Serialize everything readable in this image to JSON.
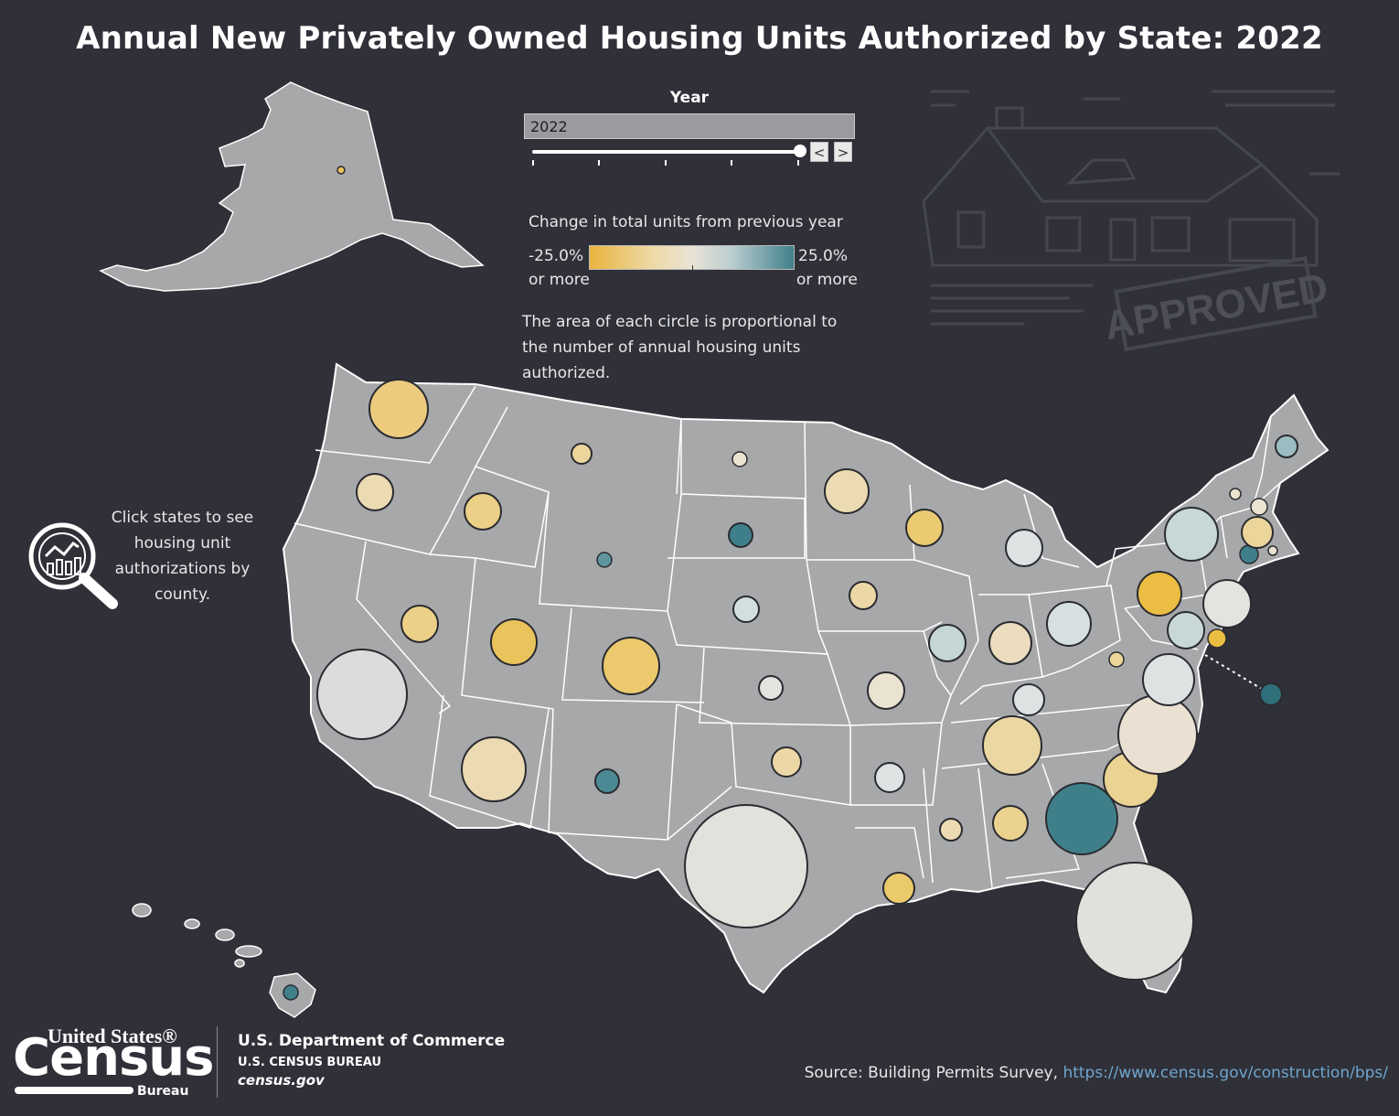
{
  "title": "Annual New Privately Owned Housing Units Authorized by State: 2022",
  "year_filter": {
    "label": "Year",
    "selected": "2022",
    "prev_label": "<",
    "next_label": ">"
  },
  "legend": {
    "title": "Change in total units from previous year",
    "low_label": "-25.0%",
    "low_sub": "or more",
    "high_label": "25.0%",
    "high_sub": "or more",
    "low_color": "#e9b33f",
    "mid_color": "#e9e3d6",
    "high_color": "#3f7f8a"
  },
  "size_note": "The area of each circle is proportional to the number of annual housing units authorized.",
  "click_hint": "Click states to see housing unit authorizations by county.",
  "decoration": {
    "stamp_text": "APPROVED"
  },
  "footer": {
    "logo_top": "United States®",
    "logo_main": "Census",
    "logo_bureau": "Bureau",
    "dept": "U.S. Department of Commerce",
    "bureau": "U.S. CENSUS BUREAU",
    "site": "census.gov",
    "source_label": "Source:",
    "source_text": "Building Permits Survey,",
    "source_url": "https://www.census.gov/construction/bps/"
  },
  "colors": {
    "background": "#2f3038",
    "land": "#a7a8aa",
    "state_border": "#ffffff"
  },
  "states": [
    {
      "name": "Washington",
      "size": 32,
      "color": "#eccb7f"
    },
    {
      "name": "Oregon",
      "size": 20,
      "color": "#ecdbb2"
    },
    {
      "name": "California",
      "size": 49,
      "color": "#dcdcdc"
    },
    {
      "name": "Idaho",
      "size": 20,
      "color": "#ecd088"
    },
    {
      "name": "Nevada",
      "size": 20,
      "color": "#ecd088"
    },
    {
      "name": "Montana",
      "size": 11,
      "color": "#ecd59a"
    },
    {
      "name": "Wyoming",
      "size": 8,
      "color": "#5f949c"
    },
    {
      "name": "Utah",
      "size": 25,
      "color": "#e9c35b"
    },
    {
      "name": "Colorado",
      "size": 31,
      "color": "#ebc96c"
    },
    {
      "name": "Arizona",
      "size": 35,
      "color": "#ecdbb2"
    },
    {
      "name": "New Mexico",
      "size": 13,
      "color": "#4b8a94"
    },
    {
      "name": "North Dakota",
      "size": 8,
      "color": "#ebe3cf"
    },
    {
      "name": "South Dakota",
      "size": 13,
      "color": "#3f7f8a"
    },
    {
      "name": "Nebraska",
      "size": 14,
      "color": "#d2dfdf"
    },
    {
      "name": "Kansas",
      "size": 13,
      "color": "#e3e3e0"
    },
    {
      "name": "Oklahoma",
      "size": 16,
      "color": "#ecd8a6"
    },
    {
      "name": "Texas",
      "size": 67,
      "color": "#e3e1dc"
    },
    {
      "name": "Minnesota",
      "size": 24,
      "color": "#ecdbb2"
    },
    {
      "name": "Iowa",
      "size": 15,
      "color": "#ecd8a6"
    },
    {
      "name": "Missouri",
      "size": 20,
      "color": "#ebe3d2"
    },
    {
      "name": "Arkansas",
      "size": 16,
      "color": "#dfe2e2"
    },
    {
      "name": "Louisiana",
      "size": 17,
      "color": "#ebca6c"
    },
    {
      "name": "Wisconsin",
      "size": 20,
      "color": "#ebcb72"
    },
    {
      "name": "Illinois",
      "size": 20,
      "color": "#c5d6d7"
    },
    {
      "name": "Michigan",
      "size": 20,
      "color": "#dfe2e2"
    },
    {
      "name": "Indiana",
      "size": 23,
      "color": "#ebddbd"
    },
    {
      "name": "Ohio",
      "size": 24,
      "color": "#d6e0e0"
    },
    {
      "name": "Kentucky",
      "size": 17,
      "color": "#dfe2e2"
    },
    {
      "name": "Tennessee",
      "size": 32,
      "color": "#ebd7a1"
    },
    {
      "name": "Mississippi",
      "size": 12,
      "color": "#ecdbb2"
    },
    {
      "name": "Alabama",
      "size": 19,
      "color": "#ebd28f"
    },
    {
      "name": "Georgia",
      "size": 39,
      "color": "#3f7f8a"
    },
    {
      "name": "Florida",
      "size": 64,
      "color": "#e2e0dc"
    },
    {
      "name": "South Carolina",
      "size": 30,
      "color": "#ebd393"
    },
    {
      "name": "North Carolina",
      "size": 43,
      "color": "#ebe1d2"
    },
    {
      "name": "Virginia",
      "size": 28,
      "color": "#dfe2e2"
    },
    {
      "name": "West Virginia",
      "size": 8,
      "color": "#ecd59a"
    },
    {
      "name": "Pennsylvania",
      "size": 24,
      "color": "#ebbd43"
    },
    {
      "name": "New York",
      "size": 29,
      "color": "#c8d8d9"
    },
    {
      "name": "New Jersey",
      "size": 26,
      "color": "#e3e3e0"
    },
    {
      "name": "Maryland",
      "size": 20,
      "color": "#c8d8d9"
    },
    {
      "name": "Delaware",
      "size": 10,
      "color": "#ebbd43"
    },
    {
      "name": "District of Columbia",
      "size": 12,
      "color": "#2f6f7a"
    },
    {
      "name": "Connecticut",
      "size": 10,
      "color": "#3f7f8a"
    },
    {
      "name": "Rhode Island",
      "size": 5,
      "color": "#ebe3cf"
    },
    {
      "name": "Massachusetts",
      "size": 17,
      "color": "#ecd59a"
    },
    {
      "name": "Vermont",
      "size": 6,
      "color": "#ebe3cf"
    },
    {
      "name": "New Hampshire",
      "size": 9,
      "color": "#ebe3cf"
    },
    {
      "name": "Maine",
      "size": 12,
      "color": "#9bbdc2"
    },
    {
      "name": "Alaska",
      "size": 4,
      "color": "#e9c35b"
    },
    {
      "name": "Hawaii",
      "size": 8,
      "color": "#3f7f8a"
    }
  ]
}
